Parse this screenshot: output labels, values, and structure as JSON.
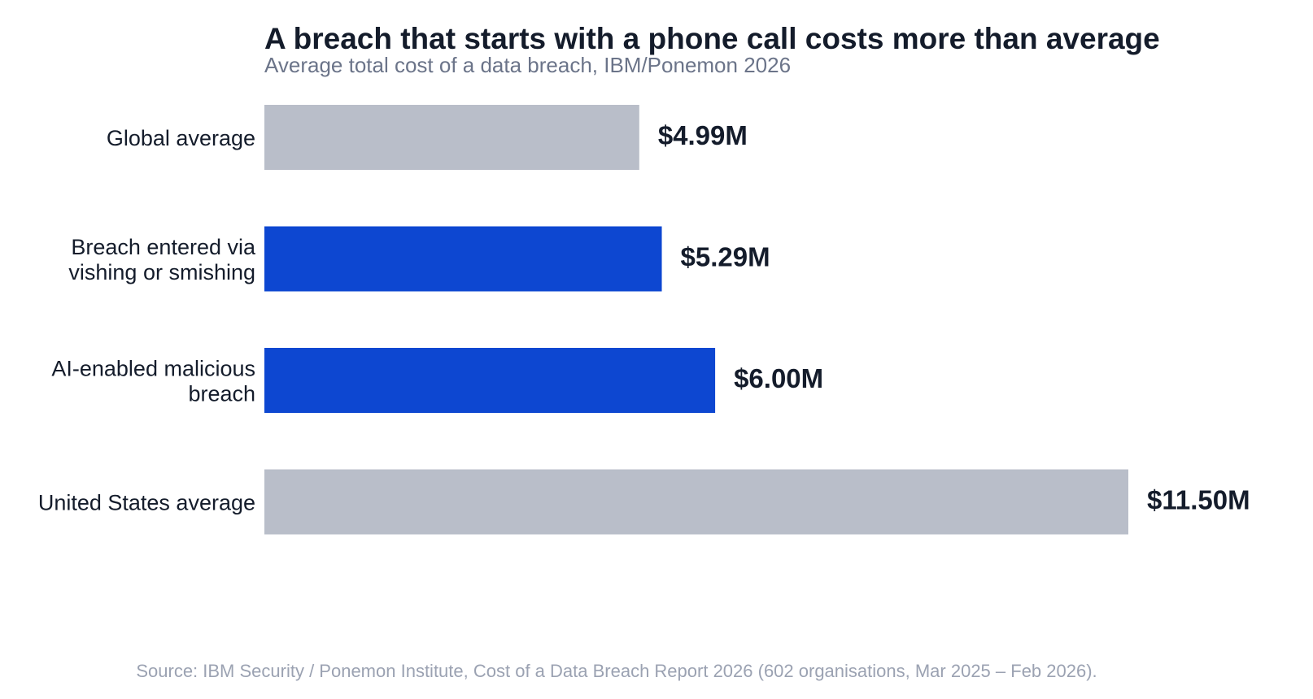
{
  "chart_data": {
    "type": "bar",
    "orientation": "horizontal",
    "title": "A breach that starts with a phone call costs more than average",
    "subtitle": "Average total cost of a data breach, IBM/Ponemon 2026",
    "categories": [
      [
        "Global average"
      ],
      [
        "Breach entered via",
        "vishing or smishing"
      ],
      [
        "AI-enabled malicious",
        "breach"
      ],
      [
        "United States average"
      ]
    ],
    "values": [
      4.99,
      5.29,
      6.0,
      11.5
    ],
    "value_labels": [
      "$4.99M",
      "$5.29M",
      "$6.00M",
      "$11.50M"
    ],
    "highlighted": [
      false,
      true,
      true,
      false
    ],
    "unit": "USD millions",
    "xlim": [
      0,
      11.5
    ],
    "grid": false,
    "axes_visible": false,
    "colors": {
      "highlight": "#0d47d1",
      "base": "#b9bec9"
    },
    "source": "Source: IBM Security / Ponemon Institute, Cost of a Data Breach Report 2026 (602 organisations, Mar 2025 – Feb 2026)."
  }
}
